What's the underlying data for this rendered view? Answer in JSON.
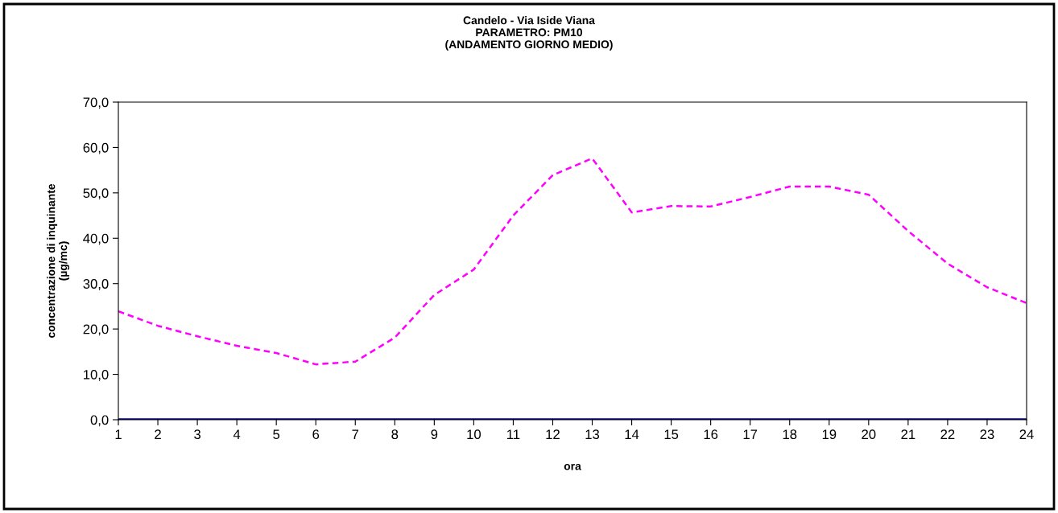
{
  "chart_data": {
    "type": "line",
    "title": "Candelo - Via Iside Viana\nPARAMETRO: PM10\n(ANDAMENTO GIORNO MEDIO)",
    "xlabel": "ora",
    "ylabel": "concentrazione di inquinante\n(µg/mc)",
    "categories": [
      "1",
      "2",
      "3",
      "4",
      "5",
      "6",
      "7",
      "8",
      "9",
      "10",
      "11",
      "12",
      "13",
      "14",
      "15",
      "16",
      "17",
      "18",
      "19",
      "20",
      "21",
      "22",
      "23",
      "24"
    ],
    "series": [
      {
        "color": "#ff00ff",
        "line_style": "dashed",
        "values": [
          23.9,
          20.7,
          18.4,
          16.3,
          14.7,
          12.2,
          12.8,
          18.1,
          27.5,
          33.1,
          45.0,
          53.9,
          57.6,
          45.7,
          47.1,
          47.0,
          49.1,
          51.4,
          51.4,
          49.6,
          41.6,
          34.4,
          29.2,
          25.7
        ]
      },
      {
        "color": "#000080",
        "line_style": "solid",
        "values": [
          0,
          0,
          0,
          0,
          0,
          0,
          0,
          0,
          0,
          0,
          0,
          0,
          0,
          0,
          0,
          0,
          0,
          0,
          0,
          0,
          0,
          0,
          0,
          0
        ]
      }
    ],
    "ylim": [
      0,
      70
    ],
    "yticks": [
      {
        "value": 0,
        "label": "0,0"
      },
      {
        "value": 10,
        "label": "10,0"
      },
      {
        "value": 20,
        "label": "20,0"
      },
      {
        "value": 30,
        "label": "30,0"
      },
      {
        "value": 40,
        "label": "40,0"
      },
      {
        "value": 50,
        "label": "50,0"
      },
      {
        "value": 60,
        "label": "60,0"
      },
      {
        "value": 70,
        "label": "70,0"
      }
    ],
    "grid": false,
    "marker": "none"
  }
}
